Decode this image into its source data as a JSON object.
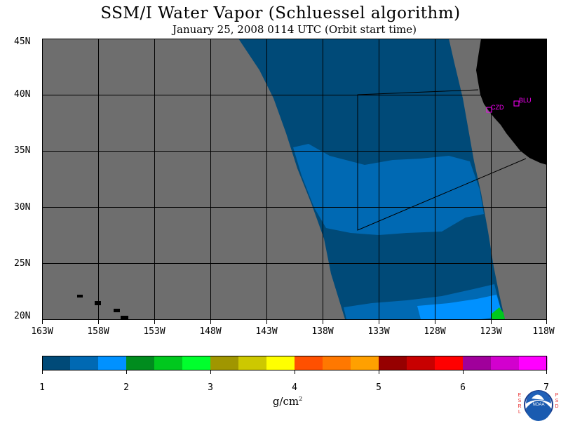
{
  "title": "SSM/I Water Vapor (Schluessel algorithm)",
  "subtitle": "January 25, 2008  0114 UTC  (Orbit start time)",
  "lat_labels": [
    "45N",
    "40N",
    "35N",
    "30N",
    "25N",
    "20N"
  ],
  "lon_labels": [
    "163W",
    "158W",
    "153W",
    "148W",
    "143W",
    "138W",
    "133W",
    "128W",
    "123W",
    "118W"
  ],
  "colorbar": {
    "ticks": [
      "1",
      "2",
      "3",
      "4",
      "5",
      "6",
      "7"
    ],
    "colors": [
      "#004a78",
      "#0069b3",
      "#0091ff",
      "#008c1e",
      "#00c81e",
      "#00ff2d",
      "#a09600",
      "#cdc800",
      "#ffff00",
      "#ff5000",
      "#ff7800",
      "#ffa000",
      "#960000",
      "#c80000",
      "#ff0000",
      "#a0009b",
      "#d200ce",
      "#ff00ff"
    ],
    "units": "g/cm",
    "units_sup": "2"
  },
  "stations": [
    {
      "label": "CZD",
      "lon": -123.3,
      "lat": 38.6
    },
    {
      "label": "BLU",
      "lon": -120.9,
      "lat": 39.3
    }
  ],
  "logo": {
    "text": "NOAA",
    "left_letters": "ESRL",
    "right_letters": "PSD"
  },
  "map_colors": {
    "land": "#000000",
    "no_data": "#6e6e6e",
    "low_vapor": "#004a78",
    "mid_vapor": "#0069b3",
    "high_vapor": "#0091ff",
    "green_patch": "#00c81e",
    "station": "#ff00ff"
  }
}
